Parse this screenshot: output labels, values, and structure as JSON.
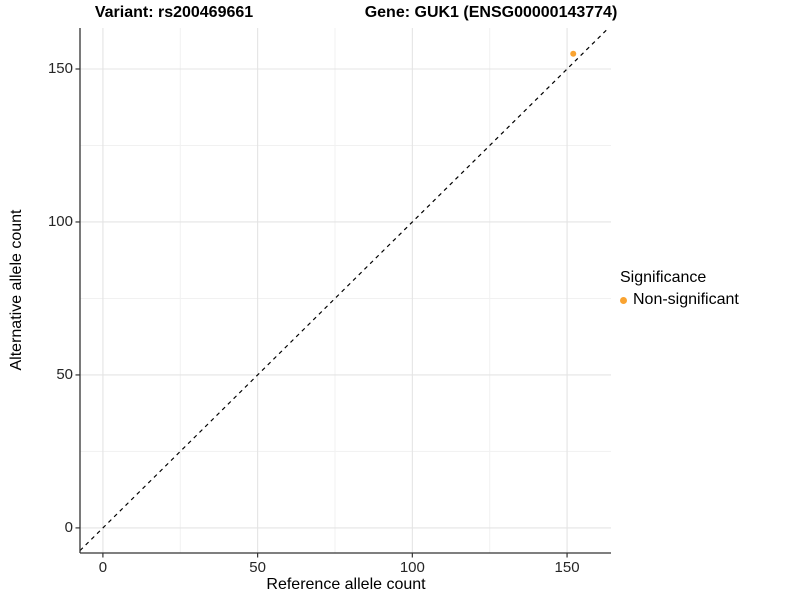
{
  "header": {
    "variant_title": "Variant: rs200469661",
    "gene_title": "Gene: GUK1 (ENSG00000143774)"
  },
  "chart_data": {
    "type": "scatter",
    "titles": [
      "Variant: rs200469661",
      "Gene: GUK1 (ENSG00000143774)"
    ],
    "xlabel": "Reference allele count",
    "ylabel": "Alternative allele count",
    "xlim": [
      -7.4,
      164.2
    ],
    "ylim": [
      -8.2,
      163.4
    ],
    "x_major_ticks": [
      0,
      50,
      100,
      150
    ],
    "y_major_ticks": [
      0,
      50,
      100,
      150
    ],
    "x_minor_ticks": [
      25,
      75,
      125
    ],
    "y_minor_ticks": [
      25,
      75,
      125
    ],
    "grid": "major+minor, light gray on white panel",
    "reference_line": {
      "kind": "identity",
      "slope": 1,
      "intercept": 0,
      "linetype": "dashed",
      "color": "#000000"
    },
    "series": [
      {
        "name": "Non-significant",
        "color": "#F9A331",
        "points": [
          {
            "x": 152,
            "y": 155
          }
        ]
      }
    ],
    "legend": {
      "title": "Significance",
      "position": "right",
      "items": [
        {
          "label": "Non-significant",
          "color": "#F9A331"
        }
      ]
    }
  },
  "colors": {
    "grid_major": "#e4e4e4",
    "grid_minor": "#f1f1f1",
    "axis_line": "#333333",
    "tick_mark": "#333333",
    "tick_label": "#262626",
    "identity_line": "#000000",
    "point_orange": "#F9A331",
    "background": "#ffffff"
  }
}
